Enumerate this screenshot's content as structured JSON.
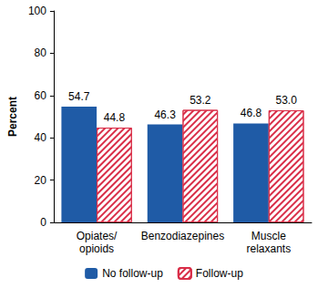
{
  "chart_data": {
    "type": "bar",
    "y_label": "Percent",
    "categories": [
      "Opiates/\nopioids",
      "Benzodiazepines",
      "Muscle\nrelaxants"
    ],
    "series": [
      {
        "name": "No follow-up",
        "color": "#1f5ba6",
        "values": [
          54.7,
          46.3,
          46.8
        ],
        "value_labels": [
          "54.7",
          "46.3",
          "46.8"
        ]
      },
      {
        "name": "Follow-up",
        "color": "#d92e48",
        "marker": "hatch",
        "values": [
          44.8,
          53.2,
          53.0
        ],
        "value_labels": [
          "44.8",
          "53.2",
          "53.0"
        ]
      }
    ],
    "ylim": [
      0,
      100
    ],
    "yticks": [
      0,
      20,
      40,
      60,
      80,
      100
    ],
    "grid": false,
    "legend": "bottom",
    "data_labels": true
  }
}
